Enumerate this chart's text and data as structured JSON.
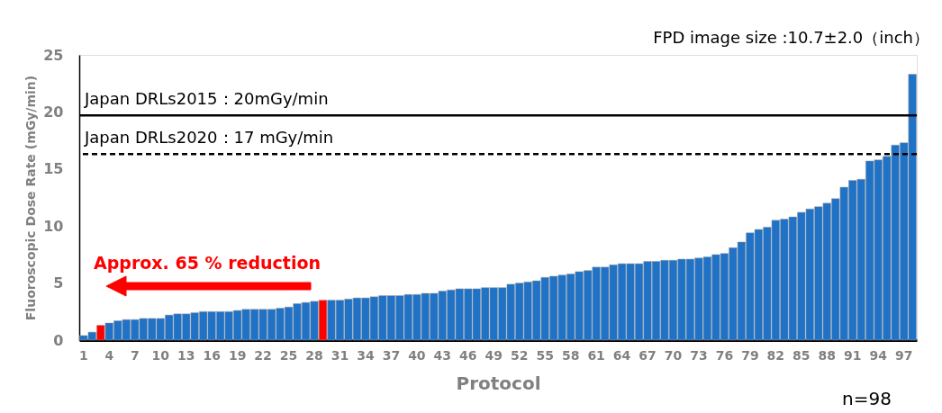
{
  "chart_data": {
    "type": "bar",
    "categories": [
      "1",
      null,
      null,
      "4",
      null,
      null,
      "7",
      null,
      null,
      "10",
      null,
      null,
      "13",
      null,
      null,
      "16",
      null,
      null,
      "19",
      null,
      null,
      "22",
      null,
      null,
      "25",
      null,
      null,
      "28",
      null,
      null,
      "31",
      null,
      null,
      "34",
      null,
      null,
      "37",
      null,
      null,
      "40",
      null,
      null,
      "43",
      null,
      null,
      "46",
      null,
      null,
      "49",
      null,
      null,
      "52",
      null,
      null,
      "55",
      null,
      null,
      "58",
      null,
      null,
      "61",
      null,
      null,
      "64",
      null,
      null,
      "67",
      null,
      null,
      "70",
      null,
      null,
      "73",
      null,
      null,
      "76",
      null,
      null,
      "79",
      null,
      null,
      "82",
      null,
      null,
      "85",
      null,
      null,
      "88",
      null,
      null,
      "91",
      null,
      null,
      "94",
      null,
      null,
      "97",
      null
    ],
    "values": [
      0.4,
      0.7,
      1.3,
      1.5,
      1.7,
      1.8,
      1.8,
      1.9,
      1.9,
      1.9,
      2.2,
      2.3,
      2.3,
      2.4,
      2.5,
      2.5,
      2.5,
      2.5,
      2.6,
      2.7,
      2.7,
      2.7,
      2.7,
      2.8,
      2.9,
      3.2,
      3.3,
      3.4,
      3.5,
      3.5,
      3.5,
      3.6,
      3.7,
      3.7,
      3.8,
      3.9,
      3.9,
      3.9,
      4.0,
      4.0,
      4.1,
      4.1,
      4.3,
      4.4,
      4.5,
      4.5,
      4.5,
      4.6,
      4.6,
      4.6,
      4.9,
      5.0,
      5.1,
      5.2,
      5.5,
      5.6,
      5.7,
      5.8,
      6.0,
      6.1,
      6.4,
      6.4,
      6.6,
      6.7,
      6.7,
      6.7,
      6.9,
      6.9,
      7.0,
      7.0,
      7.1,
      7.1,
      7.2,
      7.3,
      7.5,
      7.6,
      8.1,
      8.6,
      9.4,
      9.7,
      9.9,
      10.5,
      10.6,
      10.8,
      11.2,
      11.5,
      11.7,
      12.0,
      12.4,
      13.4,
      14.0,
      14.1,
      15.7,
      15.8,
      16.1,
      17.1,
      17.3,
      23.3
    ],
    "colors": [
      "#1f72c6",
      "#1f72c6",
      "#ff0000",
      "#1f72c6",
      "#1f72c6",
      "#1f72c6",
      "#1f72c6",
      "#1f72c6",
      "#1f72c6",
      "#1f72c6",
      "#1f72c6",
      "#1f72c6",
      "#1f72c6",
      "#1f72c6",
      "#1f72c6",
      "#1f72c6",
      "#1f72c6",
      "#1f72c6",
      "#1f72c6",
      "#1f72c6",
      "#1f72c6",
      "#1f72c6",
      "#1f72c6",
      "#1f72c6",
      "#1f72c6",
      "#1f72c6",
      "#1f72c6",
      "#1f72c6",
      "#ff0000",
      "#1f72c6",
      "#1f72c6",
      "#1f72c6",
      "#1f72c6",
      "#1f72c6",
      "#1f72c6",
      "#1f72c6",
      "#1f72c6",
      "#1f72c6",
      "#1f72c6",
      "#1f72c6",
      "#1f72c6",
      "#1f72c6",
      "#1f72c6",
      "#1f72c6",
      "#1f72c6",
      "#1f72c6",
      "#1f72c6",
      "#1f72c6",
      "#1f72c6",
      "#1f72c6",
      "#1f72c6",
      "#1f72c6",
      "#1f72c6",
      "#1f72c6",
      "#1f72c6",
      "#1f72c6",
      "#1f72c6",
      "#1f72c6",
      "#1f72c6",
      "#1f72c6",
      "#1f72c6",
      "#1f72c6",
      "#1f72c6",
      "#1f72c6",
      "#1f72c6",
      "#1f72c6",
      "#1f72c6",
      "#1f72c6",
      "#1f72c6",
      "#1f72c6",
      "#1f72c6",
      "#1f72c6",
      "#1f72c6",
      "#1f72c6",
      "#1f72c6",
      "#1f72c6",
      "#1f72c6",
      "#1f72c6",
      "#1f72c6",
      "#1f72c6",
      "#1f72c6",
      "#1f72c6",
      "#1f72c6",
      "#1f72c6",
      "#1f72c6",
      "#1f72c6",
      "#1f72c6",
      "#1f72c6",
      "#1f72c6",
      "#1f72c6",
      "#1f72c6",
      "#1f72c6",
      "#1f72c6",
      "#1f72c6",
      "#1f72c6",
      "#1f72c6",
      "#1f72c6",
      "#1f72c6"
    ],
    "xlabel": "Protocol",
    "ylabel": "Fluoroscopic Dose Rate (mGy/min)",
    "ylim": [
      0,
      25
    ],
    "yticks": [
      0,
      5,
      10,
      15,
      20,
      25
    ],
    "ref_lines": [
      {
        "axis": "y",
        "value": 19.7,
        "label": "Japan DRLs2015：20mGy/min",
        "color": "#000000",
        "line_style": "solid"
      },
      {
        "axis": "y",
        "value": 16.3,
        "label": "Japan DRLs2020：17 mGy/min",
        "color": "#000000",
        "line_style": "dashed"
      }
    ],
    "annotations": [
      "FPD image size :10.7±2.0（inch）",
      "n=98",
      "Approx. 65 % reduction"
    ],
    "grid": false
  }
}
